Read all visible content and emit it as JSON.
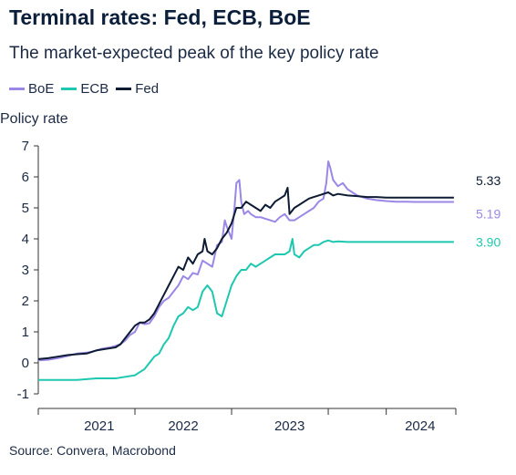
{
  "chart_data": {
    "type": "line",
    "title": "Terminal rates: Fed, ECB, BoE",
    "subtitle": "The market-expected peak of the key policy rate",
    "ylabel": "Policy rate",
    "xlabel": "",
    "source": "Source: Convera, Macrobond",
    "ylim": [
      -1,
      7
    ],
    "xlim": [
      2020.0,
      2024.32
    ],
    "yticks": [
      -1,
      0,
      1,
      2,
      3,
      4,
      5,
      6,
      7
    ],
    "xticks": [
      2020.0,
      2021.0,
      2022.0,
      2023.0,
      2023.6,
      2024.32
    ],
    "xtick_labels": [
      {
        "label": "2021",
        "x": 2020.63
      },
      {
        "label": "2022",
        "x": 2021.5
      },
      {
        "label": "2023",
        "x": 2022.6
      },
      {
        "label": "2024",
        "x": 2023.95
      }
    ],
    "grid": false,
    "legend": "top-left",
    "series": [
      {
        "name": "BoE",
        "color": "#9b87e6",
        "end_label": "5.19",
        "points": [
          [
            2020.0,
            0.08
          ],
          [
            2020.1,
            0.1
          ],
          [
            2020.2,
            0.15
          ],
          [
            2020.3,
            0.22
          ],
          [
            2020.4,
            0.3
          ],
          [
            2020.5,
            0.33
          ],
          [
            2020.55,
            0.36
          ],
          [
            2020.6,
            0.4
          ],
          [
            2020.65,
            0.45
          ],
          [
            2020.7,
            0.48
          ],
          [
            2020.75,
            0.5
          ],
          [
            2020.8,
            0.55
          ],
          [
            2020.85,
            0.6
          ],
          [
            2020.9,
            0.72
          ],
          [
            2020.95,
            0.9
          ],
          [
            2021.0,
            1.0
          ],
          [
            2021.05,
            1.3
          ],
          [
            2021.1,
            1.25
          ],
          [
            2021.15,
            1.28
          ],
          [
            2021.2,
            1.5
          ],
          [
            2021.25,
            1.8
          ],
          [
            2021.3,
            2.0
          ],
          [
            2021.35,
            2.1
          ],
          [
            2021.4,
            2.3
          ],
          [
            2021.45,
            2.5
          ],
          [
            2021.5,
            2.8
          ],
          [
            2021.55,
            2.7
          ],
          [
            2021.6,
            2.9
          ],
          [
            2021.65,
            2.85
          ],
          [
            2021.7,
            3.3
          ],
          [
            2021.75,
            3.2
          ],
          [
            2021.8,
            3.1
          ],
          [
            2021.85,
            3.8
          ],
          [
            2021.9,
            3.9
          ],
          [
            2021.93,
            4.6
          ],
          [
            2021.95,
            4.4
          ],
          [
            2022.0,
            4.0
          ],
          [
            2022.03,
            5.0
          ],
          [
            2022.05,
            5.8
          ],
          [
            2022.08,
            5.9
          ],
          [
            2022.1,
            5.2
          ],
          [
            2022.13,
            4.8
          ],
          [
            2022.17,
            4.9
          ],
          [
            2022.2,
            4.8
          ],
          [
            2022.25,
            4.7
          ],
          [
            2022.3,
            4.7
          ],
          [
            2022.35,
            4.65
          ],
          [
            2022.4,
            4.6
          ],
          [
            2022.45,
            4.55
          ],
          [
            2022.5,
            4.7
          ],
          [
            2022.55,
            4.8
          ],
          [
            2022.6,
            4.6
          ],
          [
            2022.65,
            4.6
          ],
          [
            2022.7,
            4.7
          ],
          [
            2022.75,
            4.8
          ],
          [
            2022.8,
            4.9
          ],
          [
            2022.85,
            5.0
          ],
          [
            2022.9,
            5.2
          ],
          [
            2022.95,
            5.3
          ],
          [
            2022.98,
            5.8
          ],
          [
            2023.0,
            6.5
          ],
          [
            2023.02,
            6.3
          ],
          [
            2023.05,
            5.9
          ],
          [
            2023.1,
            5.7
          ],
          [
            2023.15,
            5.8
          ],
          [
            2023.2,
            5.6
          ],
          [
            2023.25,
            5.5
          ],
          [
            2023.3,
            5.4
          ],
          [
            2023.4,
            5.3
          ],
          [
            2023.5,
            5.25
          ],
          [
            2023.6,
            5.22
          ],
          [
            2023.7,
            5.2
          ],
          [
            2023.8,
            5.2
          ],
          [
            2023.9,
            5.19
          ],
          [
            2024.0,
            5.19
          ],
          [
            2024.1,
            5.19
          ],
          [
            2024.2,
            5.19
          ],
          [
            2024.3,
            5.19
          ]
        ]
      },
      {
        "name": "ECB",
        "color": "#1ec8b0",
        "end_label": "3.90",
        "points": [
          [
            2020.0,
            -0.55
          ],
          [
            2020.2,
            -0.55
          ],
          [
            2020.4,
            -0.55
          ],
          [
            2020.6,
            -0.5
          ],
          [
            2020.8,
            -0.5
          ],
          [
            2020.9,
            -0.45
          ],
          [
            2021.0,
            -0.4
          ],
          [
            2021.05,
            -0.3
          ],
          [
            2021.1,
            -0.2
          ],
          [
            2021.15,
            0.0
          ],
          [
            2021.2,
            0.2
          ],
          [
            2021.25,
            0.3
          ],
          [
            2021.3,
            0.6
          ],
          [
            2021.35,
            0.8
          ],
          [
            2021.4,
            1.2
          ],
          [
            2021.45,
            1.5
          ],
          [
            2021.5,
            1.6
          ],
          [
            2021.55,
            1.8
          ],
          [
            2021.6,
            1.7
          ],
          [
            2021.65,
            1.8
          ],
          [
            2021.7,
            2.3
          ],
          [
            2021.75,
            2.5
          ],
          [
            2021.8,
            2.3
          ],
          [
            2021.85,
            1.6
          ],
          [
            2021.9,
            1.5
          ],
          [
            2021.95,
            2.0
          ],
          [
            2022.0,
            2.5
          ],
          [
            2022.05,
            2.8
          ],
          [
            2022.1,
            3.0
          ],
          [
            2022.15,
            3.0
          ],
          [
            2022.2,
            3.2
          ],
          [
            2022.25,
            3.1
          ],
          [
            2022.3,
            3.2
          ],
          [
            2022.35,
            3.3
          ],
          [
            2022.4,
            3.4
          ],
          [
            2022.45,
            3.5
          ],
          [
            2022.5,
            3.5
          ],
          [
            2022.55,
            3.5
          ],
          [
            2022.6,
            3.6
          ],
          [
            2022.63,
            4.0
          ],
          [
            2022.65,
            3.5
          ],
          [
            2022.7,
            3.4
          ],
          [
            2022.75,
            3.6
          ],
          [
            2022.8,
            3.7
          ],
          [
            2022.85,
            3.8
          ],
          [
            2022.9,
            3.8
          ],
          [
            2022.95,
            3.9
          ],
          [
            2023.0,
            3.95
          ],
          [
            2023.05,
            3.9
          ],
          [
            2023.1,
            3.92
          ],
          [
            2023.2,
            3.9
          ],
          [
            2023.3,
            3.9
          ],
          [
            2023.4,
            3.9
          ],
          [
            2023.5,
            3.9
          ],
          [
            2023.6,
            3.9
          ],
          [
            2023.7,
            3.9
          ],
          [
            2023.8,
            3.9
          ],
          [
            2023.9,
            3.9
          ],
          [
            2024.0,
            3.9
          ],
          [
            2024.1,
            3.9
          ],
          [
            2024.2,
            3.9
          ],
          [
            2024.3,
            3.9
          ]
        ]
      },
      {
        "name": "Fed",
        "color": "#0d1b33",
        "end_label": "5.33",
        "points": [
          [
            2020.0,
            0.12
          ],
          [
            2020.1,
            0.15
          ],
          [
            2020.2,
            0.2
          ],
          [
            2020.3,
            0.25
          ],
          [
            2020.4,
            0.28
          ],
          [
            2020.5,
            0.3
          ],
          [
            2020.6,
            0.4
          ],
          [
            2020.7,
            0.45
          ],
          [
            2020.8,
            0.5
          ],
          [
            2020.85,
            0.6
          ],
          [
            2020.9,
            0.8
          ],
          [
            2020.95,
            1.0
          ],
          [
            2021.0,
            1.2
          ],
          [
            2021.05,
            1.3
          ],
          [
            2021.1,
            1.3
          ],
          [
            2021.15,
            1.4
          ],
          [
            2021.2,
            1.6
          ],
          [
            2021.25,
            1.9
          ],
          [
            2021.3,
            2.2
          ],
          [
            2021.35,
            2.5
          ],
          [
            2021.4,
            2.8
          ],
          [
            2021.45,
            3.1
          ],
          [
            2021.5,
            3.0
          ],
          [
            2021.55,
            3.4
          ],
          [
            2021.6,
            3.2
          ],
          [
            2021.65,
            3.5
          ],
          [
            2021.7,
            3.6
          ],
          [
            2021.72,
            4.0
          ],
          [
            2021.75,
            3.6
          ],
          [
            2021.8,
            3.5
          ],
          [
            2021.85,
            3.7
          ],
          [
            2021.9,
            4.0
          ],
          [
            2021.95,
            4.2
          ],
          [
            2022.0,
            4.5
          ],
          [
            2022.05,
            5.0
          ],
          [
            2022.1,
            5.0
          ],
          [
            2022.15,
            5.2
          ],
          [
            2022.2,
            5.1
          ],
          [
            2022.25,
            5.0
          ],
          [
            2022.3,
            4.9
          ],
          [
            2022.35,
            5.1
          ],
          [
            2022.4,
            5.0
          ],
          [
            2022.45,
            5.2
          ],
          [
            2022.5,
            5.3
          ],
          [
            2022.55,
            5.4
          ],
          [
            2022.58,
            5.65
          ],
          [
            2022.6,
            4.8
          ],
          [
            2022.65,
            5.0
          ],
          [
            2022.7,
            5.1
          ],
          [
            2022.75,
            5.2
          ],
          [
            2022.8,
            5.3
          ],
          [
            2022.85,
            5.35
          ],
          [
            2022.9,
            5.4
          ],
          [
            2022.95,
            5.45
          ],
          [
            2023.0,
            5.5
          ],
          [
            2023.05,
            5.4
          ],
          [
            2023.1,
            5.45
          ],
          [
            2023.2,
            5.4
          ],
          [
            2023.3,
            5.38
          ],
          [
            2023.4,
            5.35
          ],
          [
            2023.5,
            5.35
          ],
          [
            2023.6,
            5.33
          ],
          [
            2023.7,
            5.33
          ],
          [
            2023.8,
            5.33
          ],
          [
            2023.9,
            5.33
          ],
          [
            2024.0,
            5.33
          ],
          [
            2024.1,
            5.33
          ],
          [
            2024.2,
            5.33
          ],
          [
            2024.3,
            5.33
          ]
        ]
      }
    ]
  }
}
